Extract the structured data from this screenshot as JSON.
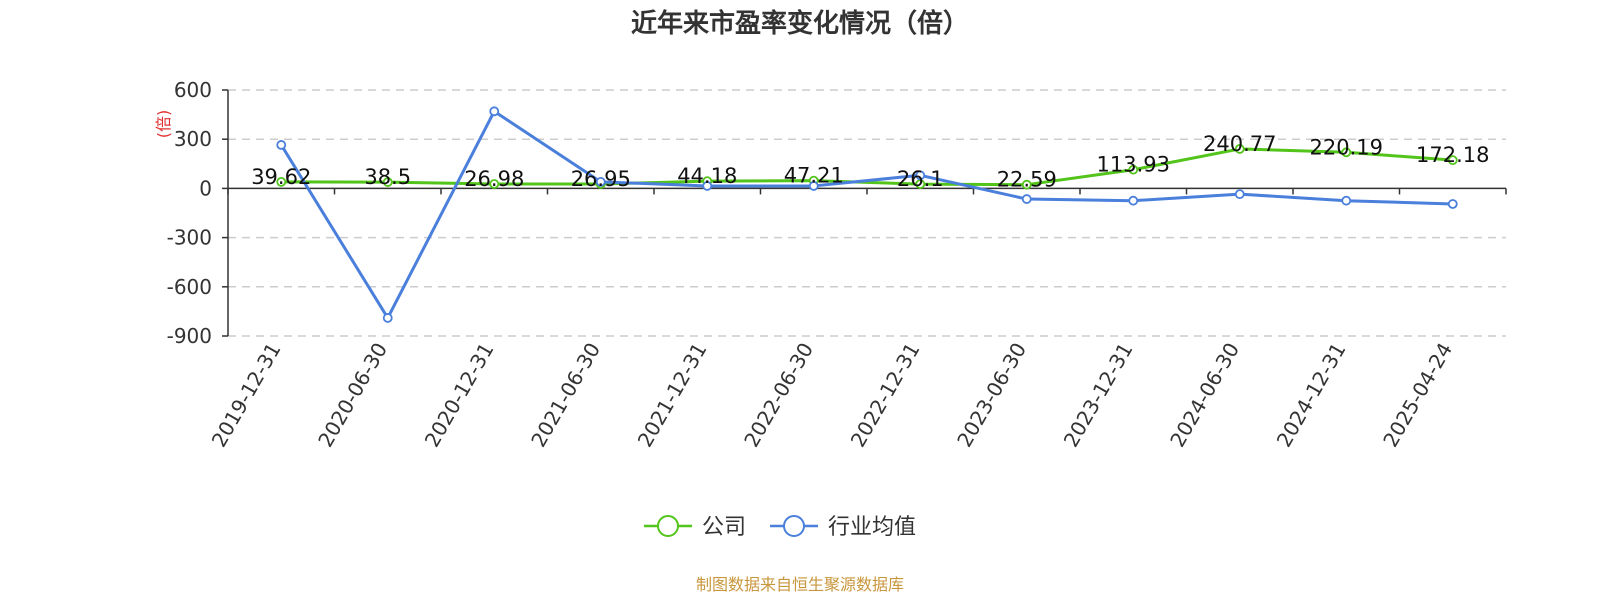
{
  "chart_data": {
    "type": "line",
    "title": "近年来市盈率变化情况（倍）",
    "y_unit_label": "(倍)",
    "categories": [
      "2019-12-31",
      "2020-06-30",
      "2020-12-31",
      "2021-06-30",
      "2021-12-31",
      "2022-06-30",
      "2022-12-31",
      "2023-06-30",
      "2023-12-31",
      "2024-06-30",
      "2024-12-31",
      "2025-04-24"
    ],
    "series": [
      {
        "name": "公司",
        "color": "#52c41a",
        "values": [
          39.62,
          38.5,
          26.98,
          26.95,
          44.18,
          47.21,
          26.1,
          22.59,
          113.93,
          240.77,
          220.19,
          172.18
        ],
        "labels": [
          "39.62",
          "38.5",
          "26.98",
          "26.95",
          "44.18",
          "47.21",
          "26.1",
          "22.59",
          "113.93",
          "240.77",
          "220.19",
          "172.18"
        ]
      },
      {
        "name": "行业均值",
        "color": "#4a7fdc",
        "values": [
          265,
          -790,
          470,
          40,
          15,
          15,
          80,
          -65,
          -75,
          -35,
          -75,
          -95
        ]
      }
    ],
    "ylim": [
      -900,
      600
    ],
    "yticks": [
      600,
      300,
      0,
      -300,
      -600,
      -900
    ],
    "ytick_labels": [
      "600",
      "300",
      "0",
      "-300",
      "-600",
      "-900"
    ],
    "grid": true,
    "legend_position": "bottom-center"
  },
  "source_text": "制图数据来自恒生聚源数据库",
  "colors": {
    "unit_label": "#e03030",
    "source_text": "#c8963c",
    "axis": "#333333",
    "grid": "#cccccc"
  }
}
